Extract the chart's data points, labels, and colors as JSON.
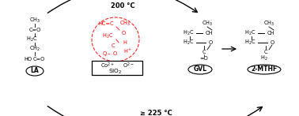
{
  "figsize": [
    3.78,
    1.47
  ],
  "dpi": 100,
  "bg_color": "#ffffff",
  "la_label": "LA",
  "gvl_label": "GVL",
  "mthf_label": "2-MTHF",
  "sio2_label": "SiO$_2$",
  "temp_top": "200 °C",
  "temp_bottom": "≥ 225 °C",
  "font_size_temp": 6.0,
  "font_size_struct": 4.8,
  "font_size_label": 5.5
}
